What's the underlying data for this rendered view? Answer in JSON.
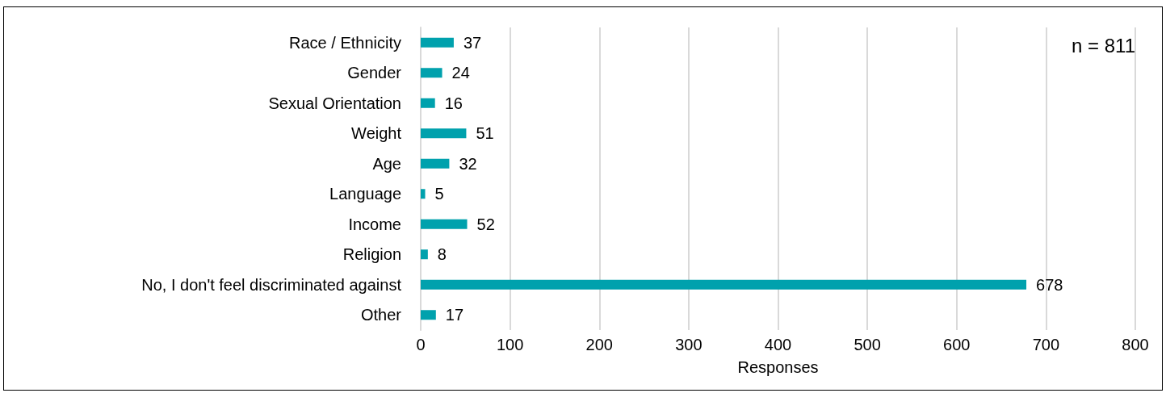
{
  "chart_data": {
    "type": "bar",
    "orientation": "horizontal",
    "categories": [
      "Race / Ethnicity",
      "Gender",
      "Sexual Orientation",
      "Weight",
      "Age",
      "Language",
      "Income",
      "Religion",
      "No, I don't feel discriminated against",
      "Other"
    ],
    "values": [
      37,
      24,
      16,
      51,
      32,
      5,
      52,
      8,
      678,
      17
    ],
    "color": "#00a1ad",
    "xlabel": "Responses",
    "xlim": [
      0,
      800
    ],
    "xticks": [
      0,
      100,
      200,
      300,
      400,
      500,
      600,
      700,
      800
    ],
    "grid": "x",
    "data_labels": true,
    "annotations": [
      "n = 811"
    ]
  }
}
